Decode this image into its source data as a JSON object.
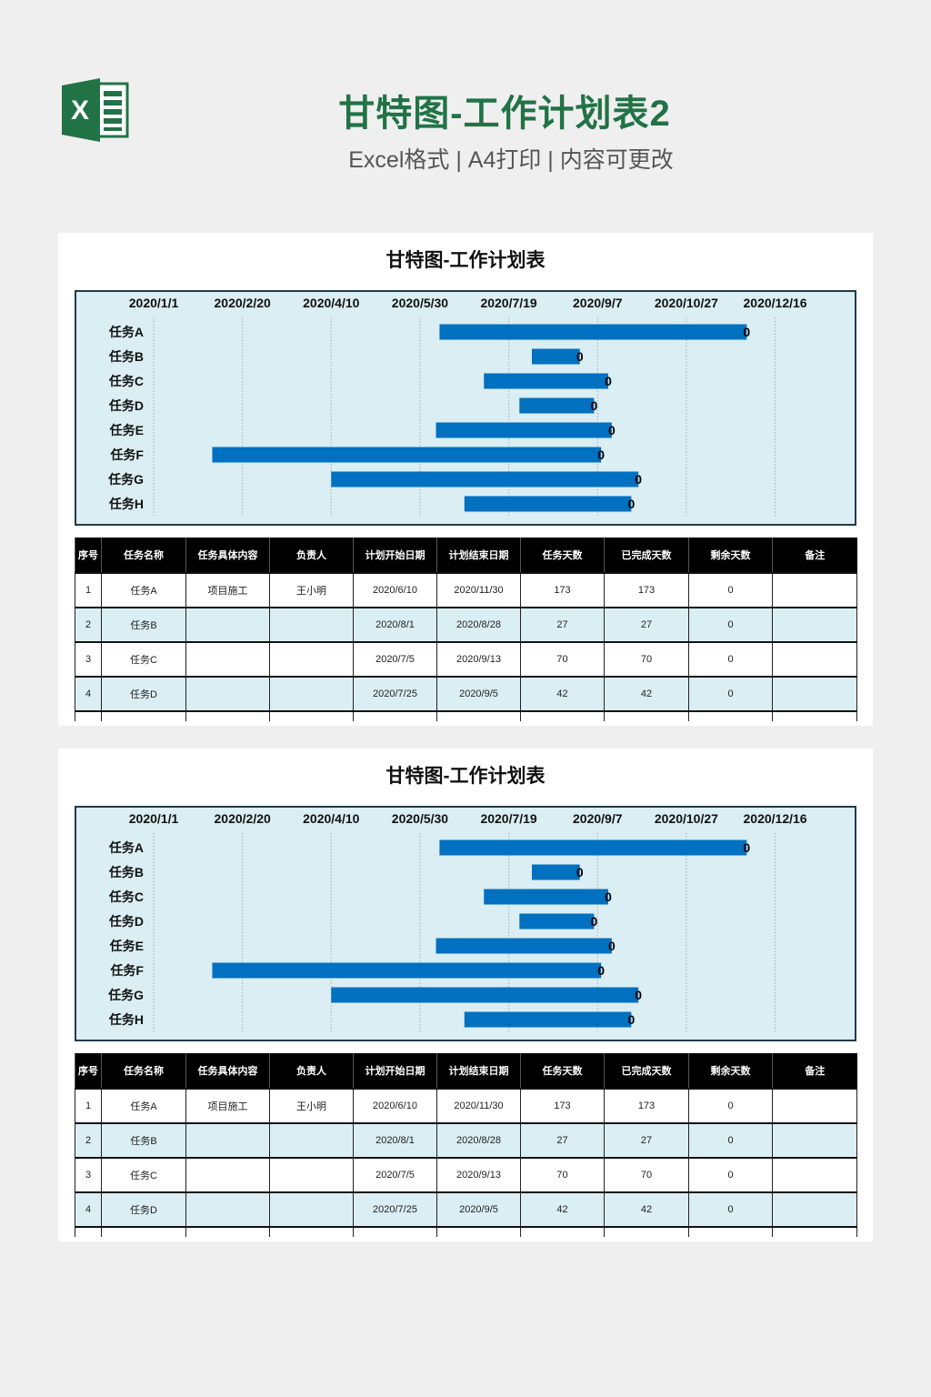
{
  "header": {
    "title": "甘特图-工作计划表2",
    "subtitle": "Excel格式 | A4打印 | 内容可更改",
    "icon": "excel-icon",
    "accent": "#217346"
  },
  "sheet": {
    "title": "甘特图-工作计划表",
    "columns": [
      "序号",
      "任务名称",
      "任务具体内容",
      "负责人",
      "计划开始日期",
      "计划结束日期",
      "任务天数",
      "已完成天数",
      "剩余天数",
      "备注"
    ],
    "rows": [
      [
        "1",
        "任务A",
        "项目施工",
        "王小明",
        "2020/6/10",
        "2020/11/30",
        "173",
        "173",
        "0",
        ""
      ],
      [
        "2",
        "任务B",
        "",
        "",
        "2020/8/1",
        "2020/8/28",
        "27",
        "27",
        "0",
        ""
      ],
      [
        "3",
        "任务C",
        "",
        "",
        "2020/7/5",
        "2020/9/13",
        "70",
        "70",
        "0",
        ""
      ],
      [
        "4",
        "任务D",
        "",
        "",
        "2020/7/25",
        "2020/9/5",
        "42",
        "42",
        "0",
        ""
      ]
    ]
  },
  "chart_data": {
    "type": "bar",
    "subtype": "gantt-horizontal",
    "title": "",
    "categories": [
      "任务A",
      "任务B",
      "任务C",
      "任务D",
      "任务E",
      "任务F",
      "任务G",
      "任务H"
    ],
    "start": [
      "2020/6/10",
      "2020/8/1",
      "2020/7/5",
      "2020/7/25",
      "2020/6/8",
      "2020/2/3",
      "2020/4/10",
      "2020/6/24"
    ],
    "end": [
      "2020/11/30",
      "2020/8/28",
      "2020/9/13",
      "2020/9/5",
      "2020/9/15",
      "2020/9/9",
      "2020/9/30",
      "2020/9/26"
    ],
    "data_labels": [
      "0",
      "0",
      "0",
      "0",
      "0",
      "0",
      "0",
      "0"
    ],
    "x_ticks": [
      "2020/1/1",
      "2020/2/20",
      "2020/4/10",
      "2020/5/30",
      "2020/7/19",
      "2020/9/7",
      "2020/10/27",
      "2020/12/16"
    ],
    "xlim": [
      "2020/1/1",
      "2021/1/25"
    ],
    "x_axis_position": "top",
    "grid": "vertical dotted",
    "colors": {
      "bar": "#0070c0",
      "plot_bg": "#daeef3",
      "border": "#1f3b4d"
    }
  }
}
